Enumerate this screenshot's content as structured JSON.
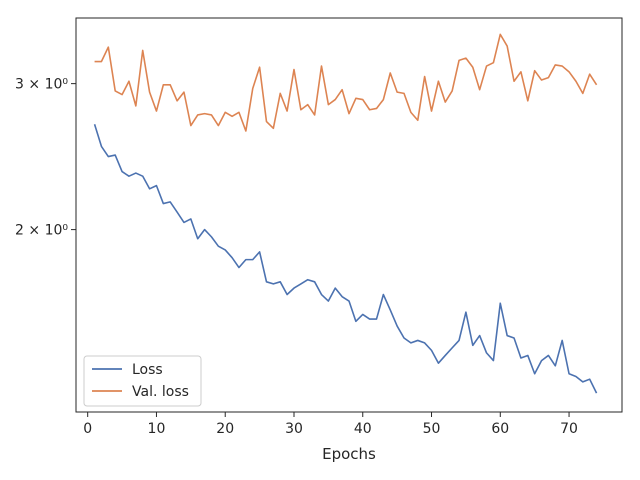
{
  "chart_data": {
    "type": "line",
    "title": "",
    "xlabel": "Epochs",
    "ylabel": "",
    "yscale": "log",
    "xlim": [
      -1.7,
      77.7
    ],
    "ylim": [
      1.205,
      3.6
    ],
    "grid": false,
    "legend_position": "lower-left",
    "x_ticks": [
      0,
      10,
      20,
      30,
      40,
      50,
      60,
      70
    ],
    "x_tick_labels": [
      "0",
      "10",
      "20",
      "30",
      "40",
      "50",
      "60",
      "70"
    ],
    "y_ticks": [
      2,
      3
    ],
    "y_tick_labels": [
      "2 × 10⁰",
      "3 × 10⁰"
    ],
    "x": [
      1,
      2,
      3,
      4,
      5,
      6,
      7,
      8,
      9,
      10,
      11,
      12,
      13,
      14,
      15,
      16,
      17,
      18,
      19,
      20,
      21,
      22,
      23,
      24,
      25,
      26,
      27,
      28,
      29,
      30,
      31,
      32,
      33,
      34,
      35,
      36,
      37,
      38,
      39,
      40,
      41,
      42,
      43,
      44,
      45,
      46,
      47,
      48,
      49,
      50,
      51,
      52,
      53,
      54,
      55,
      56,
      57,
      58,
      59,
      60,
      61,
      62,
      63,
      64,
      65,
      66,
      67,
      68,
      69,
      70,
      71,
      72,
      73,
      74
    ],
    "series": [
      {
        "name": "Loss",
        "color": "#4c72b0",
        "values": [
          2.68,
          2.52,
          2.45,
          2.46,
          2.35,
          2.32,
          2.34,
          2.32,
          2.24,
          2.26,
          2.15,
          2.16,
          2.1,
          2.04,
          2.06,
          1.95,
          2.0,
          1.96,
          1.91,
          1.89,
          1.85,
          1.8,
          1.84,
          1.84,
          1.88,
          1.73,
          1.72,
          1.73,
          1.67,
          1.7,
          1.72,
          1.74,
          1.73,
          1.67,
          1.64,
          1.7,
          1.66,
          1.64,
          1.55,
          1.58,
          1.56,
          1.56,
          1.67,
          1.6,
          1.53,
          1.48,
          1.46,
          1.47,
          1.46,
          1.43,
          1.38,
          1.41,
          1.44,
          1.47,
          1.59,
          1.45,
          1.49,
          1.42,
          1.39,
          1.63,
          1.49,
          1.48,
          1.4,
          1.41,
          1.34,
          1.39,
          1.41,
          1.37,
          1.47,
          1.34,
          1.33,
          1.31,
          1.32,
          1.27
        ]
      },
      {
        "name": "Val. loss",
        "color": "#dd8452",
        "values": [
          3.19,
          3.19,
          3.32,
          2.94,
          2.91,
          3.02,
          2.82,
          3.29,
          2.93,
          2.78,
          2.99,
          2.99,
          2.86,
          2.93,
          2.67,
          2.75,
          2.76,
          2.75,
          2.67,
          2.77,
          2.74,
          2.77,
          2.63,
          2.96,
          3.14,
          2.7,
          2.65,
          2.92,
          2.78,
          3.12,
          2.79,
          2.83,
          2.75,
          3.15,
          2.83,
          2.87,
          2.95,
          2.76,
          2.88,
          2.87,
          2.79,
          2.8,
          2.87,
          3.09,
          2.93,
          2.92,
          2.77,
          2.71,
          3.06,
          2.78,
          3.02,
          2.85,
          2.94,
          3.2,
          3.22,
          3.14,
          2.95,
          3.15,
          3.18,
          3.44,
          3.33,
          3.02,
          3.1,
          2.86,
          3.11,
          3.03,
          3.05,
          3.16,
          3.15,
          3.1,
          3.02,
          2.92,
          3.08,
          2.99
        ]
      }
    ]
  }
}
